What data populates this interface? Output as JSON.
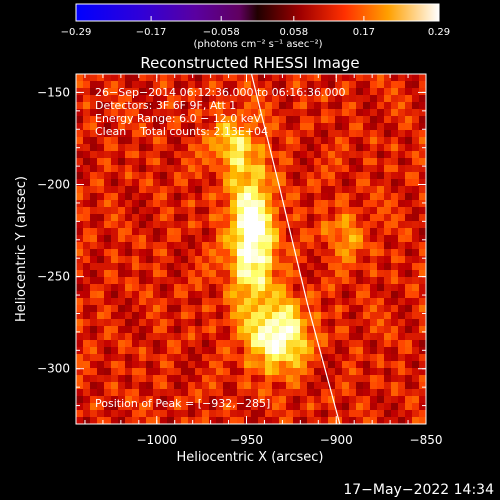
{
  "chart_data": {
    "type": "heatmap",
    "title": "Reconstructed RHESSI Image",
    "xlabel": "Heliocentric X (arcsec)",
    "ylabel": "Heliocentric Y (arcsec)",
    "xlim": [
      -1045,
      -850
    ],
    "ylim": [
      -330,
      -140
    ],
    "x_ticks": [
      -1000,
      -950,
      -900,
      -850
    ],
    "y_ticks": [
      -150,
      -200,
      -250,
      -300
    ],
    "x_tick_labels": [
      "−1000",
      "−950",
      "−900",
      "−850"
    ],
    "y_tick_labels": [
      "−150",
      "−200",
      "−250",
      "−300"
    ],
    "colorbar": {
      "range": [
        -0.29,
        0.29
      ],
      "ticks": [
        -0.29,
        -0.17,
        -0.058,
        0.058,
        0.17,
        0.29
      ],
      "tick_labels": [
        "−0.29",
        "−0.17",
        "−0.058",
        "0.058",
        "0.17",
        "0.29"
      ],
      "units_label": "(photons cm⁻² s⁻¹ asec⁻²)"
    },
    "annotations": [
      "26−Sep−2014 06:12:36.000 to 06:16:36.000",
      "Detectors: 3F 6F 9F, Att 1",
      "Energy Range: 6.0 − 12.0 keV",
      "Clean    Total counts: 2.13E+04"
    ],
    "peak_text": "Position of Peak = [−932,−285]",
    "peak": [
      -932,
      -285
    ],
    "sources": [
      {
        "x": -947,
        "y": -228,
        "sx": 9,
        "sy": 26,
        "amp": 1.0
      },
      {
        "x": -932,
        "y": -282,
        "sx": 11,
        "sy": 13,
        "amp": 0.95
      },
      {
        "x": -958,
        "y": -178,
        "sx": 8,
        "sy": 11,
        "amp": 0.55
      },
      {
        "x": -895,
        "y": -228,
        "sx": 9,
        "sy": 10,
        "amp": 0.35
      }
    ],
    "limb_curve": [
      [
        -948,
        -137
      ],
      [
        -932,
        -200
      ],
      [
        -916,
        -265
      ],
      [
        -898,
        -330
      ]
    ],
    "colormap": "IDL colortable 3 (red temperature)",
    "grid": false
  },
  "footer": {
    "timestamp": "17−May−2022 14:34"
  }
}
